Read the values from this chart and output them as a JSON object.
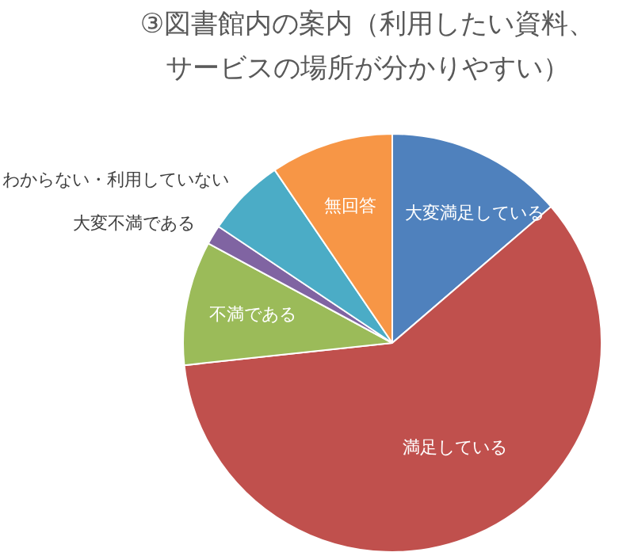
{
  "chart_data": {
    "type": "pie",
    "title": "③図書館内の案内（利用したい資料、サービスの場所が分かりやすい）",
    "categories": [
      "大変満足している",
      "満足している",
      "不満である",
      "大変不満である",
      "わからない・利用していない",
      "無回答"
    ],
    "values": [
      13.7,
      59.6,
      9.6,
      1.5,
      6.1,
      9.5
    ],
    "colors": [
      "#4f81bd",
      "#c0504d",
      "#9bbb59",
      "#8064a2",
      "#4bacc6",
      "#f79646"
    ],
    "legend": false
  }
}
